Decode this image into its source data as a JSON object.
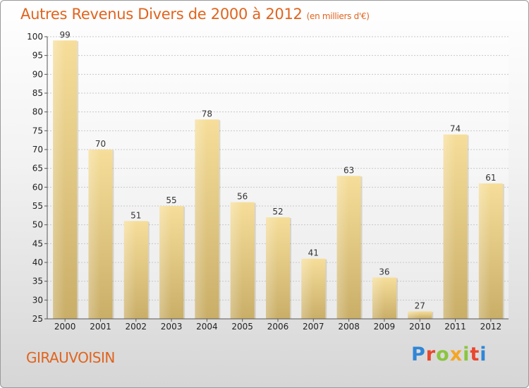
{
  "header": {
    "title": "Autres Revenus Divers de 2000 à 2012",
    "subtitle": "(en milliers d'€)"
  },
  "footer": {
    "commune": "GIRAUVOISIN",
    "logo": {
      "text": "Proxiti",
      "colors": [
        "#2f86d6",
        "#e8472e",
        "#8bc53f",
        "#f5a623",
        "#8bc53f",
        "#e8472e",
        "#2f86d6"
      ]
    }
  },
  "chart_data": {
    "type": "bar",
    "title": "Autres Revenus Divers de 2000 à 2012",
    "subtitle": "(en milliers d'€)",
    "categories": [
      "2000",
      "2001",
      "2002",
      "2003",
      "2004",
      "2005",
      "2006",
      "2007",
      "2008",
      "2009",
      "2010",
      "2011",
      "2012"
    ],
    "values": [
      99,
      70,
      51,
      55,
      78,
      56,
      52,
      41,
      63,
      36,
      27,
      74,
      61
    ],
    "ylim": [
      25,
      100
    ],
    "yticks": [
      25,
      30,
      35,
      40,
      45,
      50,
      55,
      60,
      65,
      70,
      75,
      80,
      85,
      90,
      95,
      100
    ],
    "grid": true,
    "bar_color": "#e9cd83",
    "xlabel": "",
    "ylabel": ""
  }
}
